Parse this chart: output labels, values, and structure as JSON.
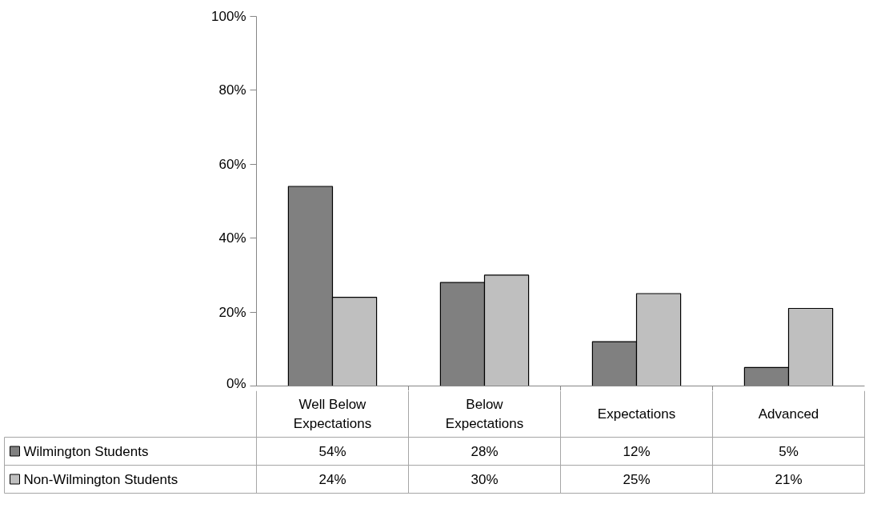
{
  "chart_data": {
    "type": "bar",
    "categories": [
      "Well Below Expectations",
      "Below Expectations",
      "Expectations",
      "Advanced"
    ],
    "series": [
      {
        "name": "Wilmington Students",
        "color": "#808080",
        "values": [
          54,
          28,
          12,
          5
        ],
        "value_labels": [
          "54%",
          "28%",
          "12%",
          "5%"
        ]
      },
      {
        "name": "Non-Wilmington Students",
        "color": "#bfbfbf",
        "values": [
          24,
          30,
          25,
          21
        ],
        "value_labels": [
          "24%",
          "30%",
          "25%",
          "21%"
        ]
      }
    ],
    "ylim": [
      0,
      100
    ],
    "yticks": [
      {
        "value": 0,
        "label": "0%"
      },
      {
        "value": 20,
        "label": "20%"
      },
      {
        "value": 40,
        "label": "40%"
      },
      {
        "value": 60,
        "label": "60%"
      },
      {
        "value": 80,
        "label": "80%"
      },
      {
        "value": 100,
        "label": "100%"
      }
    ],
    "grid": false,
    "legend": "bottom"
  }
}
